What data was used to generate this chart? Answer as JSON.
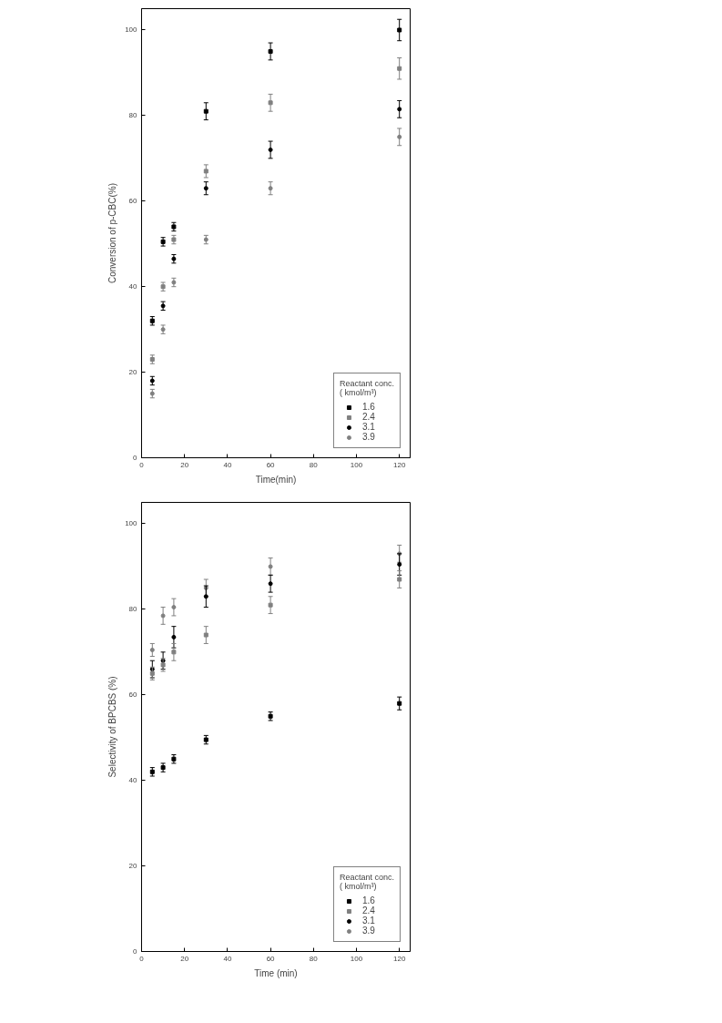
{
  "chart_data": [
    {
      "type": "scatter",
      "xlabel": "Time(min)",
      "ylabel": "Conversion of p-CBC(%)",
      "legend_title": "Reactant conc.\n( kmol/m³)",
      "legend": "bottom right",
      "grid": false,
      "xlim": [
        0,
        125
      ],
      "ylim": [
        0,
        105
      ],
      "xticks": [
        0,
        20,
        40,
        60,
        80,
        100,
        120
      ],
      "yticks": [
        0,
        20,
        40,
        60,
        80,
        100
      ],
      "x": [
        5,
        10,
        15,
        30,
        60,
        120
      ],
      "series": [
        {
          "name": "1.6",
          "color": "#000000",
          "marker": "square",
          "values": [
            32,
            50.5,
            54,
            81,
            95,
            100
          ],
          "errors": [
            1,
            1,
            1,
            2,
            2,
            2.5
          ]
        },
        {
          "name": "2.4",
          "color": "#808080",
          "marker": "square",
          "values": [
            23,
            40,
            51,
            67,
            83,
            91
          ],
          "errors": [
            1,
            1,
            1,
            1.5,
            2,
            2.5
          ]
        },
        {
          "name": "3.1",
          "color": "#000000",
          "marker": "circle",
          "values": [
            18,
            35.5,
            46.5,
            63,
            72,
            81.5
          ],
          "errors": [
            1,
            1,
            1,
            1.5,
            2,
            2
          ]
        },
        {
          "name": "3.9",
          "color": "#808080",
          "marker": "circle",
          "values": [
            15,
            30,
            41,
            51,
            63,
            75
          ],
          "errors": [
            1,
            1,
            1,
            1,
            1.5,
            2
          ]
        }
      ]
    },
    {
      "type": "scatter",
      "xlabel": "Time (min)",
      "ylabel": "Selectivity of BPCBS (%)",
      "legend_title": "Reactant conc.\n( kmol/m³)",
      "legend": "bottom right",
      "grid": false,
      "xlim": [
        0,
        125
      ],
      "ylim": [
        0,
        105
      ],
      "xticks": [
        0,
        20,
        40,
        60,
        80,
        100,
        120
      ],
      "yticks": [
        0,
        20,
        40,
        60,
        80,
        100
      ],
      "x": [
        5,
        10,
        15,
        30,
        60,
        120
      ],
      "series": [
        {
          "name": "1.6",
          "color": "#000000",
          "marker": "square",
          "values": [
            42,
            43,
            45,
            49.5,
            55,
            58
          ],
          "errors": [
            1,
            1,
            1,
            1,
            1,
            1.5
          ]
        },
        {
          "name": "2.4",
          "color": "#808080",
          "marker": "square",
          "values": [
            65,
            67,
            70,
            74,
            81,
            87
          ],
          "errors": [
            1.5,
            1.5,
            2,
            2,
            2,
            2
          ]
        },
        {
          "name": "3.1",
          "color": "#000000",
          "marker": "circle",
          "values": [
            66,
            68,
            73.5,
            83,
            86,
            90.5
          ],
          "errors": [
            2,
            2,
            2.5,
            2.5,
            2,
            2.5
          ]
        },
        {
          "name": "3.9",
          "color": "#808080",
          "marker": "circle",
          "values": [
            70.5,
            78.5,
            80.5,
            85,
            90,
            93
          ],
          "errors": [
            1.5,
            2,
            2,
            2,
            2,
            2
          ]
        }
      ]
    }
  ]
}
